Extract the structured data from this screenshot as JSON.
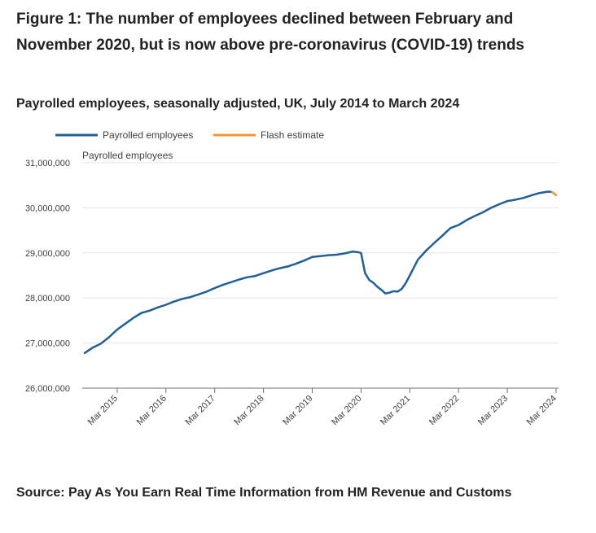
{
  "title": "Figure 1: The number of employees declined between February and November 2020, but is now above pre-coronavirus (COVID-19) trends",
  "subtitle": "Payrolled employees, seasonally adjusted, UK, July 2014 to March 2024",
  "source": "Source: Pay As You Earn Real Time Information from HM Revenue and Customs",
  "colors": {
    "payrolled": "#206095",
    "flash": "#f39431",
    "grid": "#e6e6e6",
    "axis": "#707070"
  },
  "chart_data": {
    "type": "line",
    "ylabel": "Payrolled employees",
    "ylim": [
      26000000,
      31000000
    ],
    "yticks": [
      26000000,
      27000000,
      28000000,
      29000000,
      30000000,
      31000000
    ],
    "ytick_labels": [
      "26,000,000",
      "27,000,000",
      "28,000,000",
      "29,000,000",
      "30,000,000",
      "31,000,000"
    ],
    "xlim": [
      "2014-07",
      "2024-03"
    ],
    "xticks": [
      "2015-03",
      "2016-03",
      "2017-03",
      "2018-03",
      "2019-03",
      "2020-03",
      "2021-03",
      "2022-03",
      "2023-03",
      "2024-03"
    ],
    "xtick_labels": [
      "Mar 2015",
      "Mar 2016",
      "Mar 2017",
      "Mar 2018",
      "Mar 2019",
      "Mar 2020",
      "Mar 2021",
      "Mar 2022",
      "Mar 2023",
      "Mar 2024"
    ],
    "legend_position": "top-left",
    "grid": true,
    "series": [
      {
        "name": "Payrolled employees",
        "x": [
          "2014-07",
          "2014-09",
          "2014-11",
          "2015-01",
          "2015-03",
          "2015-05",
          "2015-07",
          "2015-09",
          "2015-11",
          "2016-01",
          "2016-03",
          "2016-05",
          "2016-07",
          "2016-09",
          "2016-11",
          "2017-01",
          "2017-03",
          "2017-05",
          "2017-07",
          "2017-09",
          "2017-11",
          "2018-01",
          "2018-03",
          "2018-05",
          "2018-07",
          "2018-09",
          "2018-11",
          "2019-01",
          "2019-03",
          "2019-05",
          "2019-07",
          "2019-09",
          "2019-11",
          "2020-01",
          "2020-02",
          "2020-03",
          "2020-04",
          "2020-05",
          "2020-06",
          "2020-07",
          "2020-08",
          "2020-09",
          "2020-10",
          "2020-11",
          "2020-12",
          "2021-01",
          "2021-02",
          "2021-03",
          "2021-05",
          "2021-07",
          "2021-09",
          "2021-11",
          "2022-01",
          "2022-03",
          "2022-05",
          "2022-07",
          "2022-09",
          "2022-11",
          "2023-01",
          "2023-03",
          "2023-05",
          "2023-07",
          "2023-09",
          "2023-11",
          "2024-01",
          "2024-02"
        ],
        "y": [
          26780000,
          26900000,
          26990000,
          27130000,
          27300000,
          27430000,
          27560000,
          27670000,
          27720000,
          27790000,
          27850000,
          27920000,
          27980000,
          28020000,
          28080000,
          28140000,
          28220000,
          28290000,
          28350000,
          28410000,
          28460000,
          28490000,
          28550000,
          28610000,
          28660000,
          28700000,
          28760000,
          28830000,
          28910000,
          28930000,
          28950000,
          28960000,
          28990000,
          29030000,
          29020000,
          29000000,
          28550000,
          28400000,
          28340000,
          28250000,
          28180000,
          28100000,
          28120000,
          28150000,
          28140000,
          28200000,
          28330000,
          28500000,
          28850000,
          29050000,
          29220000,
          29380000,
          29550000,
          29620000,
          29730000,
          29820000,
          29900000,
          30000000,
          30080000,
          30150000,
          30180000,
          30220000,
          30280000,
          30330000,
          30360000,
          30350000
        ]
      },
      {
        "name": "Flash estimate",
        "x": [
          "2024-02",
          "2024-03"
        ],
        "y": [
          30350000,
          30280000
        ]
      }
    ]
  }
}
